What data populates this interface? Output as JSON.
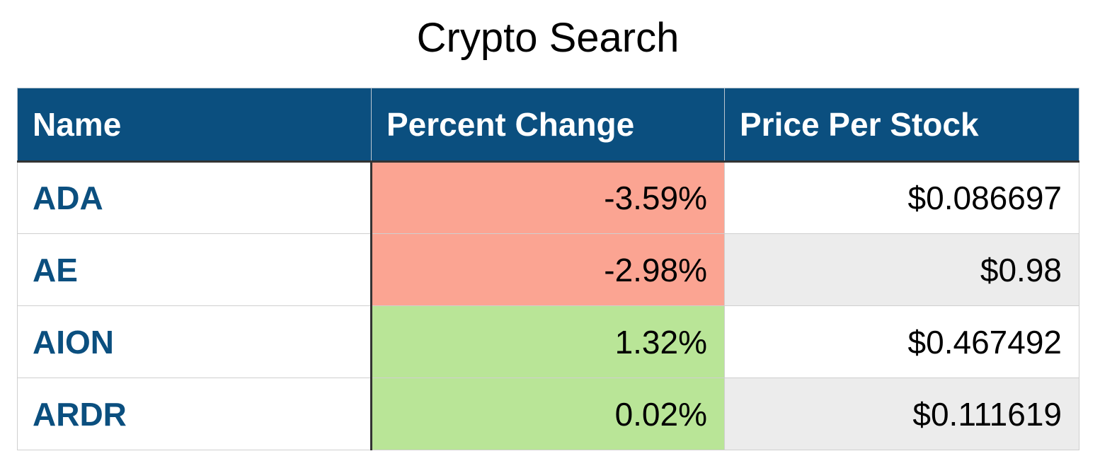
{
  "page": {
    "title": "Crypto Search"
  },
  "table": {
    "headers": [
      "Name",
      "Percent Change",
      "Price Per Stock"
    ],
    "rows": [
      {
        "name": "ADA",
        "percent_change": "-3.59%",
        "price": "$0.086697"
      },
      {
        "name": "AE",
        "percent_change": "-2.98%",
        "price": "$0.98"
      },
      {
        "name": "AION",
        "percent_change": "1.32%",
        "price": "$0.467492"
      },
      {
        "name": "ARDR",
        "percent_change": "0.02%",
        "price": "$0.111619"
      }
    ]
  },
  "colors": {
    "header_bg": "#0b4f7f",
    "header_text": "#ffffff",
    "name_text": "#0b4f7f",
    "negative_bg": "#fba492",
    "positive_bg": "#b9e597",
    "price_alt_bg": "#ececec",
    "price_bg": "#ffffff"
  }
}
